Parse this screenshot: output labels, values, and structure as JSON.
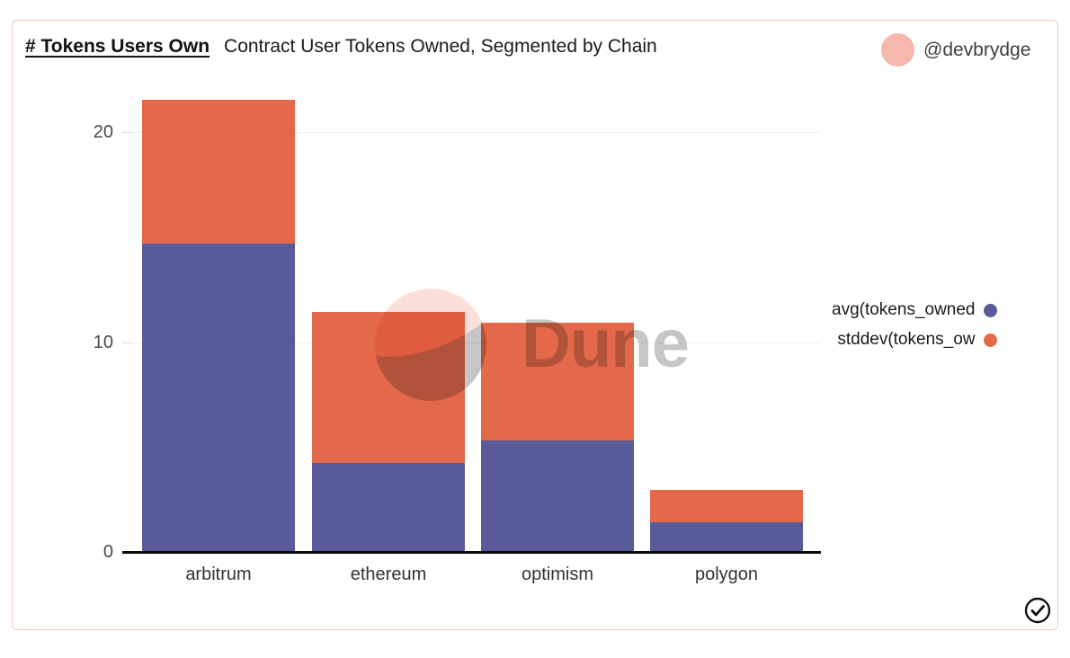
{
  "header": {
    "title": "# Tokens Users Own",
    "subtitle": "Contract User Tokens Owned, Segmented by Chain",
    "author_handle": "@devbrydge"
  },
  "legend": {
    "items": [
      {
        "label": "avg(tokens_owned",
        "color": "#575b99"
      },
      {
        "label": "stddev(tokens_ow",
        "color": "#e4694a"
      }
    ]
  },
  "watermark": {
    "text": "Dune"
  },
  "chart_data": {
    "type": "bar",
    "stacked": true,
    "title": "# Tokens Users Own — Contract User Tokens Owned, Segmented by Chain",
    "categories": [
      "arbitrum",
      "ethereum",
      "optimism",
      "polygon"
    ],
    "series": [
      {
        "name": "avg(tokens_owned",
        "color": "#575b99",
        "values": [
          14.7,
          4.25,
          5.3,
          1.4
        ]
      },
      {
        "name": "stddev(tokens_ow",
        "color": "#e4694a",
        "values": [
          6.85,
          7.2,
          5.6,
          1.55
        ]
      }
    ],
    "xlabel": "",
    "ylabel": "",
    "y_ticks": [
      0,
      10,
      20
    ],
    "ylim": [
      0,
      22
    ],
    "grid": true,
    "legend_position": "right"
  },
  "colors": {
    "card_border": "#f4c5bc",
    "avatar": "#f6b7ad",
    "watermark_circle": "#fbdfd8",
    "watermark_gray": "#c6c6c6",
    "axis_line": "#0a0a0a"
  }
}
